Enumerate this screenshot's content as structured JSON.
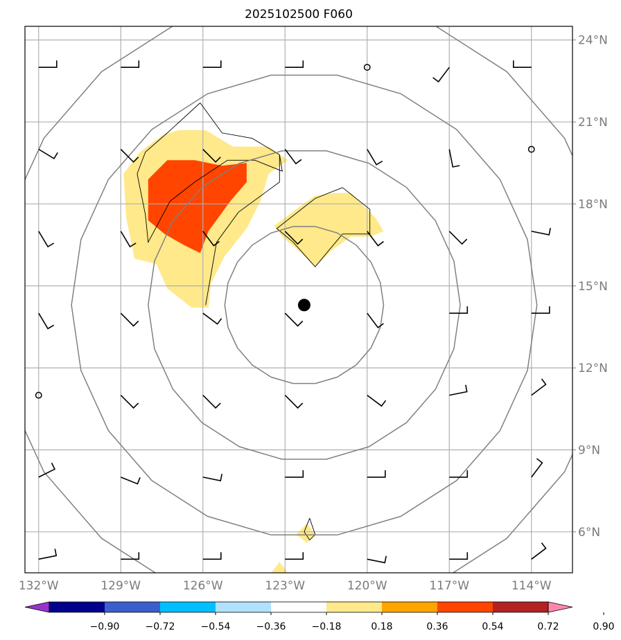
{
  "title": "2025102500 F060",
  "colors": {
    "ring": "#808080",
    "grid": "#b0b0b0",
    "center": "#000000",
    "barb": "#000000"
  },
  "chart_data": {
    "type": "map",
    "projection": "lat/lon plate carree",
    "extent": {
      "lon": [
        -132.5,
        -112.5
      ],
      "lat": [
        4.5,
        24.5
      ]
    },
    "grid": true,
    "lon_ticks": [
      {
        "value": -132,
        "label": "132°W"
      },
      {
        "value": -129,
        "label": "129°W"
      },
      {
        "value": -126,
        "label": "126°W"
      },
      {
        "value": -123,
        "label": "123°W"
      },
      {
        "value": -120,
        "label": "120°W"
      },
      {
        "value": -117,
        "label": "117°W"
      },
      {
        "value": -114,
        "label": "114°W"
      }
    ],
    "lat_ticks": [
      {
        "value": 24,
        "label": "24°N"
      },
      {
        "value": 21,
        "label": "21°N"
      },
      {
        "value": 18,
        "label": "18°N"
      },
      {
        "value": 15,
        "label": "15°N"
      },
      {
        "value": 12,
        "label": "12°N"
      },
      {
        "value": 9,
        "label": "9°N"
      },
      {
        "value": 6,
        "label": "6°N"
      }
    ],
    "center": {
      "lon": -122.3,
      "lat": 14.3
    },
    "range_rings_deg": [
      2.9,
      5.7,
      8.5,
      11.3
    ],
    "colorbar": {
      "levels": [
        -0.9,
        -0.72,
        -0.54,
        -0.36,
        -0.18,
        0.18,
        0.36,
        0.54,
        0.72,
        0.9
      ],
      "tick_labels": [
        "−0.90",
        "−0.72",
        "−0.54",
        "−0.36",
        "−0.18",
        "0.18",
        "0.36",
        "0.54",
        "0.72",
        "0.90"
      ],
      "colors": [
        "#9932cc",
        "#00008b",
        "#3a5fcd",
        "#00bfff",
        "#b0e2ff",
        "#ffffff",
        "#ffe98a",
        "#ffa500",
        "#ff4500",
        "#b22222",
        "#ff88aa"
      ],
      "extend": "both"
    },
    "shaded_regions": [
      {
        "level": 0.18,
        "polygon": [
          [
            -126.9,
            20.7
          ],
          [
            -125.9,
            20.7
          ],
          [
            -124.9,
            20.1
          ],
          [
            -123.6,
            20.1
          ],
          [
            -122.9,
            19.6
          ],
          [
            -123.6,
            19.1
          ],
          [
            -123.9,
            18.1
          ],
          [
            -124.4,
            17.1
          ],
          [
            -125.2,
            16.1
          ],
          [
            -125.7,
            15.1
          ],
          [
            -125.8,
            14.2
          ],
          [
            -126.4,
            14.2
          ],
          [
            -127.3,
            14.9
          ],
          [
            -127.7,
            15.8
          ],
          [
            -128.5,
            16.0
          ],
          [
            -128.8,
            17.5
          ],
          [
            -128.9,
            19.1
          ],
          [
            -128.3,
            19.9
          ],
          [
            -127.5,
            20.5
          ]
        ]
      },
      {
        "level": 0.18,
        "polygon": [
          [
            -121.2,
            18.4
          ],
          [
            -120.6,
            18.4
          ],
          [
            -119.7,
            17.5
          ],
          [
            -119.4,
            17.0
          ],
          [
            -119.9,
            16.8
          ],
          [
            -120.6,
            16.8
          ],
          [
            -121.3,
            16.3
          ],
          [
            -121.9,
            15.7
          ],
          [
            -122.4,
            16.2
          ],
          [
            -123.1,
            16.8
          ],
          [
            -123.4,
            17.2
          ],
          [
            -122.6,
            17.8
          ],
          [
            -121.9,
            18.3
          ]
        ]
      },
      {
        "level": 0.54,
        "polygon": [
          [
            -127.3,
            19.6
          ],
          [
            -126.3,
            19.6
          ],
          [
            -125.3,
            19.4
          ],
          [
            -124.4,
            19.5
          ],
          [
            -124.4,
            18.8
          ],
          [
            -125.0,
            18.1
          ],
          [
            -125.8,
            17.0
          ],
          [
            -126.1,
            16.2
          ],
          [
            -126.7,
            16.5
          ],
          [
            -127.4,
            16.9
          ],
          [
            -128.0,
            17.4
          ],
          [
            -128.0,
            18.9
          ]
        ]
      },
      {
        "level": 0.18,
        "polygon": [
          [
            -122.2,
            6.3
          ],
          [
            -121.9,
            5.9
          ],
          [
            -122.2,
            5.6
          ],
          [
            -122.6,
            5.9
          ]
        ]
      },
      {
        "level": 0.18,
        "polygon": [
          [
            -123.2,
            4.9
          ],
          [
            -122.9,
            4.5
          ],
          [
            -123.5,
            4.5
          ]
        ]
      }
    ],
    "contour_lines": [
      [
        [
          -126.1,
          21.7
        ],
        [
          -125.3,
          20.6
        ],
        [
          -124.2,
          20.4
        ],
        [
          -123.2,
          19.8
        ],
        [
          -123.1,
          19.2
        ],
        [
          -124.1,
          19.6
        ],
        [
          -125.1,
          19.6
        ],
        [
          -126.3,
          18.8
        ],
        [
          -127.2,
          18.1
        ],
        [
          -128.0,
          16.6
        ],
        [
          -128.1,
          17.6
        ],
        [
          -128.4,
          19.1
        ],
        [
          -128.1,
          19.9
        ],
        [
          -127.3,
          20.6
        ],
        [
          -126.1,
          21.7
        ]
      ],
      [
        [
          -123.2,
          19.8
        ],
        [
          -123.2,
          18.8
        ],
        [
          -124.7,
          17.7
        ],
        [
          -125.5,
          16.6
        ],
        [
          -125.9,
          14.3
        ]
      ],
      [
        [
          -120.9,
          18.6
        ],
        [
          -119.9,
          17.8
        ],
        [
          -119.9,
          16.9
        ],
        [
          -120.9,
          16.9
        ],
        [
          -121.9,
          15.7
        ],
        [
          -122.7,
          16.6
        ],
        [
          -123.3,
          17.1
        ],
        [
          -121.9,
          18.2
        ],
        [
          -120.9,
          18.6
        ]
      ],
      [
        [
          -122.1,
          6.5
        ],
        [
          -121.9,
          5.9
        ],
        [
          -122.1,
          5.7
        ],
        [
          -122.3,
          6.0
        ],
        [
          -122.1,
          6.5
        ]
      ]
    ],
    "wind_barbs": [
      {
        "lon": -132,
        "lat": 23,
        "u": -5,
        "v": 0
      },
      {
        "lon": -129,
        "lat": 23,
        "u": -5,
        "v": 0
      },
      {
        "lon": -126,
        "lat": 23,
        "u": -5,
        "v": 0
      },
      {
        "lon": -123,
        "lat": 23,
        "u": -5,
        "v": 0
      },
      {
        "lon": -120,
        "lat": 23,
        "u": 0,
        "v": 0
      },
      {
        "lon": -117,
        "lat": 23,
        "u": 3,
        "v": 4
      },
      {
        "lon": -114,
        "lat": 23,
        "u": 5,
        "v": 0
      },
      {
        "lon": -132,
        "lat": 20,
        "u": -5,
        "v": 3
      },
      {
        "lon": -129,
        "lat": 20,
        "u": -4,
        "v": 4
      },
      {
        "lon": -126,
        "lat": 20,
        "u": -4,
        "v": 4
      },
      {
        "lon": -123,
        "lat": 20,
        "u": -3,
        "v": 4
      },
      {
        "lon": -120,
        "lat": 20,
        "u": -3,
        "v": 5
      },
      {
        "lon": -117,
        "lat": 20,
        "u": -1,
        "v": 5
      },
      {
        "lon": -114,
        "lat": 20,
        "u": 0,
        "v": 0
      },
      {
        "lon": -132,
        "lat": 17,
        "u": -3,
        "v": 5
      },
      {
        "lon": -129,
        "lat": 17,
        "u": -3,
        "v": 5
      },
      {
        "lon": -126,
        "lat": 17,
        "u": -3,
        "v": 4
      },
      {
        "lon": -123,
        "lat": 17,
        "u": -4,
        "v": 4
      },
      {
        "lon": -120,
        "lat": 17,
        "u": -3,
        "v": 4
      },
      {
        "lon": -117,
        "lat": 17,
        "u": -4,
        "v": 4
      },
      {
        "lon": -114,
        "lat": 17,
        "u": -5,
        "v": 1
      },
      {
        "lon": -132,
        "lat": 14,
        "u": -3,
        "v": 5
      },
      {
        "lon": -129,
        "lat": 14,
        "u": -4,
        "v": 4
      },
      {
        "lon": -126,
        "lat": 14,
        "u": -4,
        "v": 3
      },
      {
        "lon": -123,
        "lat": 14,
        "u": -4,
        "v": 4
      },
      {
        "lon": -120,
        "lat": 14,
        "u": -3,
        "v": 4
      },
      {
        "lon": -117,
        "lat": 14,
        "u": -5,
        "v": 0
      },
      {
        "lon": -114,
        "lat": 14,
        "u": -5,
        "v": 0
      },
      {
        "lon": -132,
        "lat": 11,
        "u": 0,
        "v": 0
      },
      {
        "lon": -129,
        "lat": 11,
        "u": -4,
        "v": 4
      },
      {
        "lon": -126,
        "lat": 11,
        "u": -4,
        "v": 4
      },
      {
        "lon": -123,
        "lat": 11,
        "u": -4,
        "v": 4
      },
      {
        "lon": -120,
        "lat": 11,
        "u": -4,
        "v": 3
      },
      {
        "lon": -117,
        "lat": 11,
        "u": -5,
        "v": -1
      },
      {
        "lon": -114,
        "lat": 11,
        "u": -4,
        "v": -3
      },
      {
        "lon": -132,
        "lat": 8,
        "u": -4,
        "v": -2
      },
      {
        "lon": -129,
        "lat": 8,
        "u": -5,
        "v": 2
      },
      {
        "lon": -126,
        "lat": 8,
        "u": -5,
        "v": 1
      },
      {
        "lon": -123,
        "lat": 8,
        "u": -5,
        "v": 0
      },
      {
        "lon": -120,
        "lat": 8,
        "u": -5,
        "v": 0
      },
      {
        "lon": -117,
        "lat": 8,
        "u": -5,
        "v": 0
      },
      {
        "lon": -114,
        "lat": 8,
        "u": -3,
        "v": -4
      },
      {
        "lon": -132,
        "lat": 5,
        "u": -5,
        "v": -1
      },
      {
        "lon": -129,
        "lat": 5,
        "u": -5,
        "v": 0
      },
      {
        "lon": -126,
        "lat": 5,
        "u": -5,
        "v": 0
      },
      {
        "lon": -123,
        "lat": 5,
        "u": -5,
        "v": 0
      },
      {
        "lon": -120,
        "lat": 5,
        "u": -5,
        "v": 1
      },
      {
        "lon": -117,
        "lat": 5,
        "u": -5,
        "v": 0
      },
      {
        "lon": -114,
        "lat": 5,
        "u": -4,
        "v": -3
      }
    ]
  }
}
